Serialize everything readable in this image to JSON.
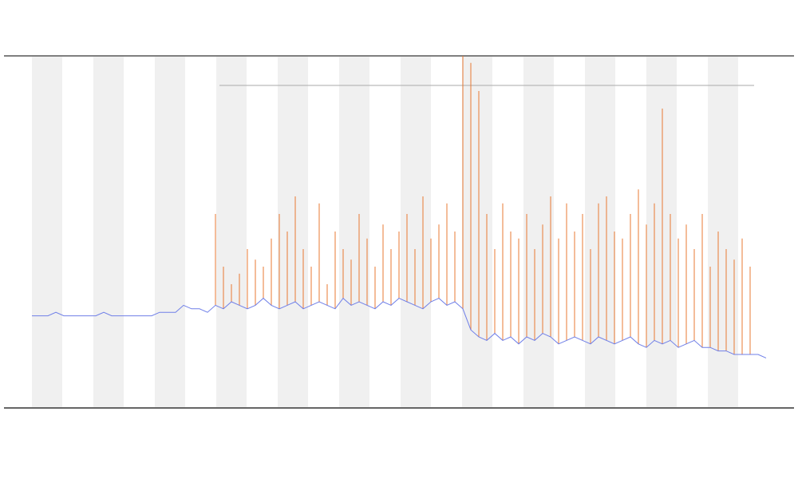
{
  "chart_data": {
    "type": "line",
    "ylim": [
      0,
      100
    ],
    "series": [
      {
        "color": "#6f7fe8",
        "values": [
          26,
          26,
          26,
          27,
          26,
          26,
          26,
          26,
          26,
          27,
          26,
          26,
          26,
          26,
          26,
          26,
          27,
          27,
          27,
          29,
          28,
          28,
          27,
          29,
          28,
          30,
          29,
          28,
          29,
          31,
          29,
          28,
          29,
          30,
          28,
          29,
          30,
          29,
          28,
          31,
          29,
          30,
          29,
          28,
          30,
          29,
          31,
          30,
          29,
          28,
          30,
          31,
          29,
          30,
          28,
          22,
          20,
          19,
          21,
          19,
          20,
          18,
          20,
          19,
          21,
          20,
          18,
          19,
          20,
          19,
          18,
          20,
          19,
          18,
          19,
          20,
          18,
          17,
          19,
          18,
          19,
          17,
          18,
          19,
          17,
          17,
          16,
          16,
          15,
          15,
          15,
          15,
          14
        ]
      },
      {
        "color": "#e8762c",
        "values": [
          null,
          null,
          null,
          null,
          null,
          null,
          null,
          null,
          null,
          null,
          null,
          null,
          null,
          null,
          null,
          null,
          null,
          null,
          null,
          null,
          null,
          null,
          null,
          55,
          40,
          35,
          38,
          45,
          42,
          40,
          48,
          55,
          50,
          60,
          45,
          40,
          58,
          35,
          50,
          45,
          42,
          55,
          48,
          40,
          52,
          45,
          50,
          55,
          45,
          60,
          48,
          52,
          58,
          50,
          100,
          98,
          90,
          55,
          45,
          58,
          50,
          48,
          55,
          45,
          52,
          60,
          48,
          58,
          50,
          55,
          45,
          58,
          60,
          50,
          48,
          55,
          62,
          52,
          58,
          85,
          55,
          48,
          52,
          45,
          55,
          40,
          50,
          45,
          42,
          48,
          40,
          null,
          null
        ]
      }
    ]
  }
}
